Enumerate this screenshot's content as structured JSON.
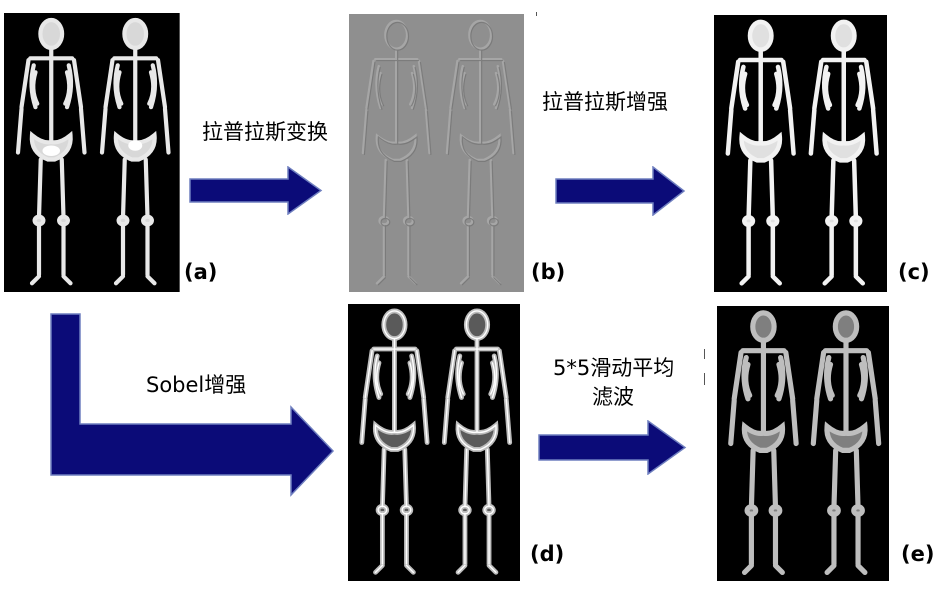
{
  "panels": {
    "a": {
      "label": "(a)"
    },
    "b": {
      "label": "(b)"
    },
    "c": {
      "label": "(c)"
    },
    "d": {
      "label": "(d)"
    },
    "e": {
      "label": "(e)"
    }
  },
  "captions": {
    "laplace_transform": "拉普拉斯变换",
    "laplace_enhance": "拉普拉斯增强",
    "sobel_enhance": "Sobel增强",
    "smoothing_line1": "5*5滑动平均",
    "smoothing_line2": "滤波"
  },
  "colors": {
    "arrow_fill": "#0b0b78",
    "arrow_stroke": "#6f7fbf",
    "bone_bright": "#f2f2f2",
    "bone_dim": "#9a9a9a",
    "scan_background": "#000000",
    "laplacian_background": "#8f8f8f"
  },
  "icons": {
    "arrow": "right-block-arrow",
    "elbow_arrow": "down-right-elbow-arrow",
    "skeleton": "whole-body-bone-scan"
  }
}
